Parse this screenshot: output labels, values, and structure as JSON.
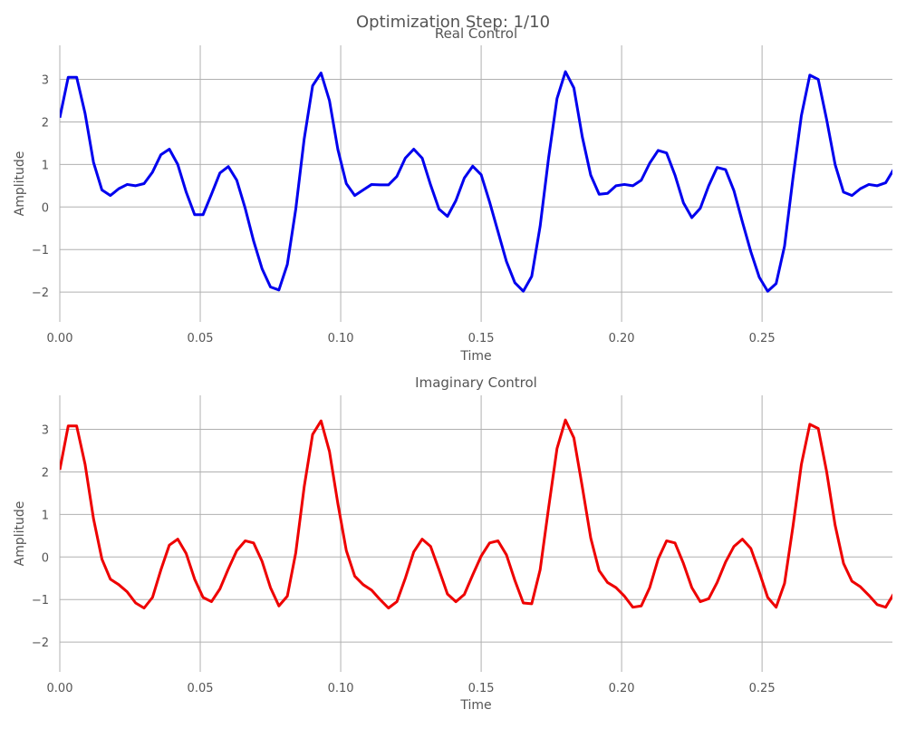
{
  "figure": {
    "suptitle": "Optimization Step: 1/10"
  },
  "colors": {
    "real": "#0000ee",
    "imag": "#ee0000",
    "grid": "#b0b0b0",
    "text": "#555555"
  },
  "chart_data": [
    {
      "type": "line",
      "title": "Real Control",
      "xlabel": "Time",
      "ylabel": "Amplitude",
      "xlim": [
        0,
        0.2964
      ],
      "ylim": [
        -2.7,
        3.8
      ],
      "xticks": [
        0.0,
        0.05,
        0.1,
        0.15,
        0.2,
        0.25
      ],
      "xtick_labels": [
        "0.00",
        "0.05",
        "0.10",
        "0.15",
        "0.20",
        "0.25"
      ],
      "yticks": [
        -2,
        -1,
        0,
        1,
        2,
        3
      ],
      "ytick_labels": [
        "−2",
        "−1",
        "0",
        "1",
        "2",
        "3"
      ],
      "grid": true,
      "x_step": 0.003,
      "series": [
        {
          "color": "#0000ee",
          "y": [
            2.1,
            3.05,
            3.05,
            2.2,
            1.05,
            0.4,
            0.27,
            0.43,
            0.53,
            0.5,
            0.55,
            0.82,
            1.23,
            1.36,
            1.0,
            0.35,
            -0.18,
            -0.18,
            0.3,
            0.8,
            0.95,
            0.63,
            -0.03,
            -0.8,
            -1.45,
            -1.88,
            -1.95,
            -1.35,
            -0.05,
            1.6,
            2.85,
            3.15,
            2.5,
            1.35,
            0.55,
            0.27,
            0.4,
            0.53,
            0.52,
            0.52,
            0.72,
            1.15,
            1.36,
            1.15,
            0.52,
            -0.05,
            -0.22,
            0.15,
            0.68,
            0.96,
            0.76,
            0.12,
            -0.58,
            -1.28,
            -1.78,
            -1.98,
            -1.63,
            -0.45,
            1.15,
            2.55,
            3.18,
            2.8,
            1.65,
            0.75,
            0.3,
            0.32,
            0.5,
            0.53,
            0.5,
            0.63,
            1.03,
            1.33,
            1.27,
            0.75,
            0.1,
            -0.25,
            -0.03,
            0.5,
            0.93,
            0.88,
            0.38,
            -0.35,
            -1.05,
            -1.65,
            -1.98,
            -1.8,
            -0.92,
            0.68,
            2.15,
            3.1,
            3.0,
            2.05,
            1.0,
            0.35,
            0.27,
            0.43,
            0.53,
            0.5,
            0.57,
            0.9
          ]
        }
      ]
    },
    {
      "type": "line",
      "title": "Imaginary Control",
      "xlabel": "Time",
      "ylabel": "Amplitude",
      "xlim": [
        0,
        0.2964
      ],
      "ylim": [
        -2.7,
        3.8
      ],
      "xticks": [
        0.0,
        0.05,
        0.1,
        0.15,
        0.2,
        0.25
      ],
      "xtick_labels": [
        "0.00",
        "0.05",
        "0.10",
        "0.15",
        "0.20",
        "0.25"
      ],
      "yticks": [
        -2,
        -1,
        0,
        1,
        2,
        3
      ],
      "ytick_labels": [
        "−2",
        "−1",
        "0",
        "1",
        "2",
        "3"
      ],
      "grid": true,
      "x_step": 0.003,
      "series": [
        {
          "color": "#ee0000",
          "y": [
            2.05,
            3.08,
            3.08,
            2.18,
            0.9,
            -0.05,
            -0.52,
            -0.65,
            -0.82,
            -1.08,
            -1.2,
            -0.95,
            -0.3,
            0.28,
            0.42,
            0.08,
            -0.52,
            -0.95,
            -1.05,
            -0.75,
            -0.28,
            0.15,
            0.38,
            0.33,
            -0.1,
            -0.72,
            -1.15,
            -0.92,
            0.1,
            1.65,
            2.88,
            3.2,
            2.48,
            1.25,
            0.15,
            -0.45,
            -0.65,
            -0.78,
            -1.0,
            -1.2,
            -1.05,
            -0.5,
            0.12,
            0.42,
            0.25,
            -0.3,
            -0.87,
            -1.05,
            -0.88,
            -0.42,
            0.02,
            0.33,
            0.38,
            0.05,
            -0.55,
            -1.08,
            -1.1,
            -0.3,
            1.15,
            2.55,
            3.22,
            2.8,
            1.65,
            0.45,
            -0.32,
            -0.6,
            -0.72,
            -0.92,
            -1.18,
            -1.15,
            -0.72,
            -0.05,
            0.38,
            0.33,
            -0.15,
            -0.72,
            -1.05,
            -0.98,
            -0.6,
            -0.12,
            0.25,
            0.42,
            0.2,
            -0.35,
            -0.95,
            -1.18,
            -0.62,
            0.72,
            2.18,
            3.12,
            3.02,
            2.0,
            0.75,
            -0.15,
            -0.57,
            -0.7,
            -0.9,
            -1.12,
            -1.18,
            -0.85
          ]
        }
      ]
    }
  ]
}
